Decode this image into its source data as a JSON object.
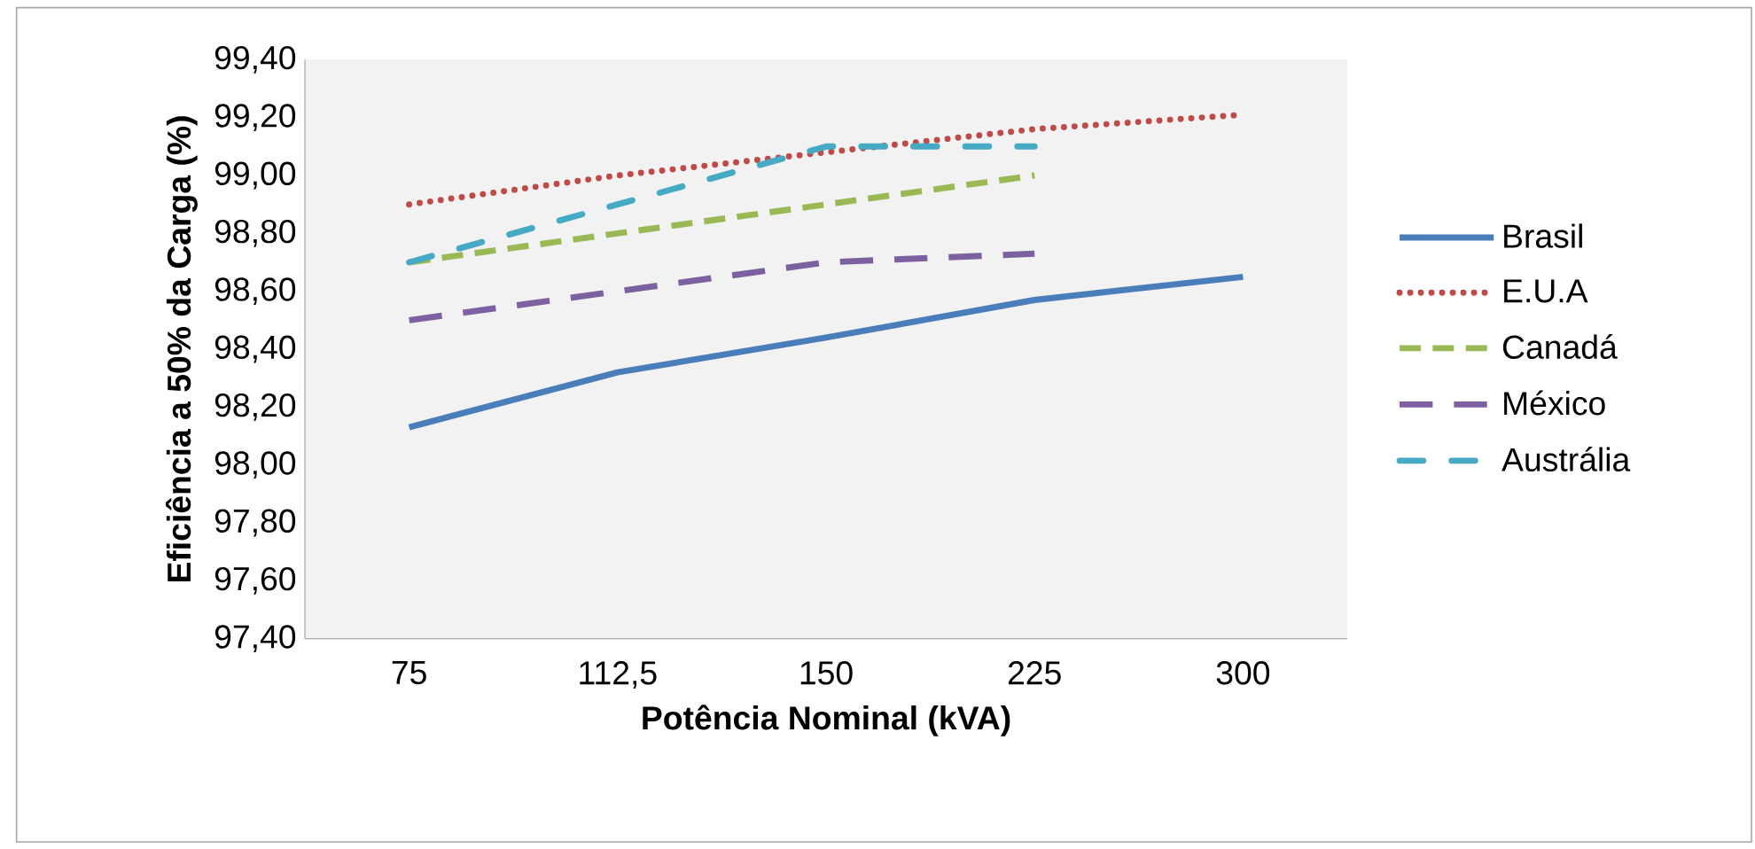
{
  "chart_data": {
    "type": "line",
    "xlabel": "Potência Nominal (kVA)",
    "ylabel": "Eficiência a 50% da Carga (%)",
    "categories": [
      "75",
      "112,5",
      "150",
      "225",
      "300"
    ],
    "ylim": [
      97.4,
      99.4
    ],
    "yticks": [
      {
        "value": 97.4,
        "label": "97,40"
      },
      {
        "value": 97.6,
        "label": "97,60"
      },
      {
        "value": 97.8,
        "label": "97,80"
      },
      {
        "value": 98.0,
        "label": "98,00"
      },
      {
        "value": 98.2,
        "label": "98,20"
      },
      {
        "value": 98.4,
        "label": "98,40"
      },
      {
        "value": 98.6,
        "label": "98,60"
      },
      {
        "value": 98.8,
        "label": "98,80"
      },
      {
        "value": 99.0,
        "label": "99,00"
      },
      {
        "value": 99.2,
        "label": "99,20"
      },
      {
        "value": 99.4,
        "label": "99,40"
      }
    ],
    "grid": false,
    "legend": "right",
    "marker": "none",
    "series": [
      {
        "name": "Brasil",
        "color": "#4a7ebb",
        "line_style": "solid",
        "values": [
          98.13,
          98.32,
          98.44,
          98.57,
          98.65
        ]
      },
      {
        "name": "E.U.A",
        "color": "#be4b48",
        "line_style": "dotted",
        "values": [
          98.9,
          99.0,
          99.08,
          99.16,
          99.21
        ]
      },
      {
        "name": "Canadá",
        "color": "#98b954",
        "line_style": "dashed",
        "values": [
          98.7,
          98.8,
          98.9,
          99.0,
          null
        ]
      },
      {
        "name": "México",
        "color": "#7d60a0",
        "line_style": "longdashed",
        "values": [
          98.5,
          98.6,
          98.7,
          98.73,
          null
        ]
      },
      {
        "name": "Austrália",
        "color": "#46aac5",
        "line_style": "dashdot",
        "values": [
          98.7,
          98.9,
          99.1,
          99.1,
          null
        ]
      }
    ]
  }
}
